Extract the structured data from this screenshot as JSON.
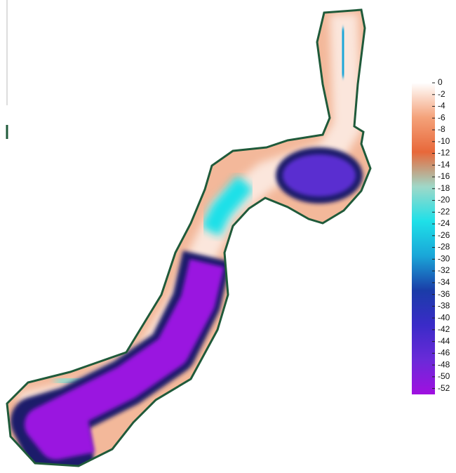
{
  "colorbar": {
    "ticks": [
      0,
      -2,
      -4,
      -6,
      -8,
      -10,
      -12,
      -14,
      -16,
      -18,
      -20,
      -22,
      -24,
      -26,
      -28,
      -30,
      -32,
      -34,
      -36,
      -38,
      -40,
      -42,
      -44,
      -46,
      -48,
      -50,
      -52
    ],
    "lim": [
      0,
      -53
    ],
    "colors": [
      "#ffffff",
      "#f4a27a",
      "#e8683a",
      "#9fd8c8",
      "#1ee0e8",
      "#1aa6d8",
      "#1a3ca8",
      "#3a2bc8",
      "#6a2ad8",
      "#a010e0"
    ]
  }
}
